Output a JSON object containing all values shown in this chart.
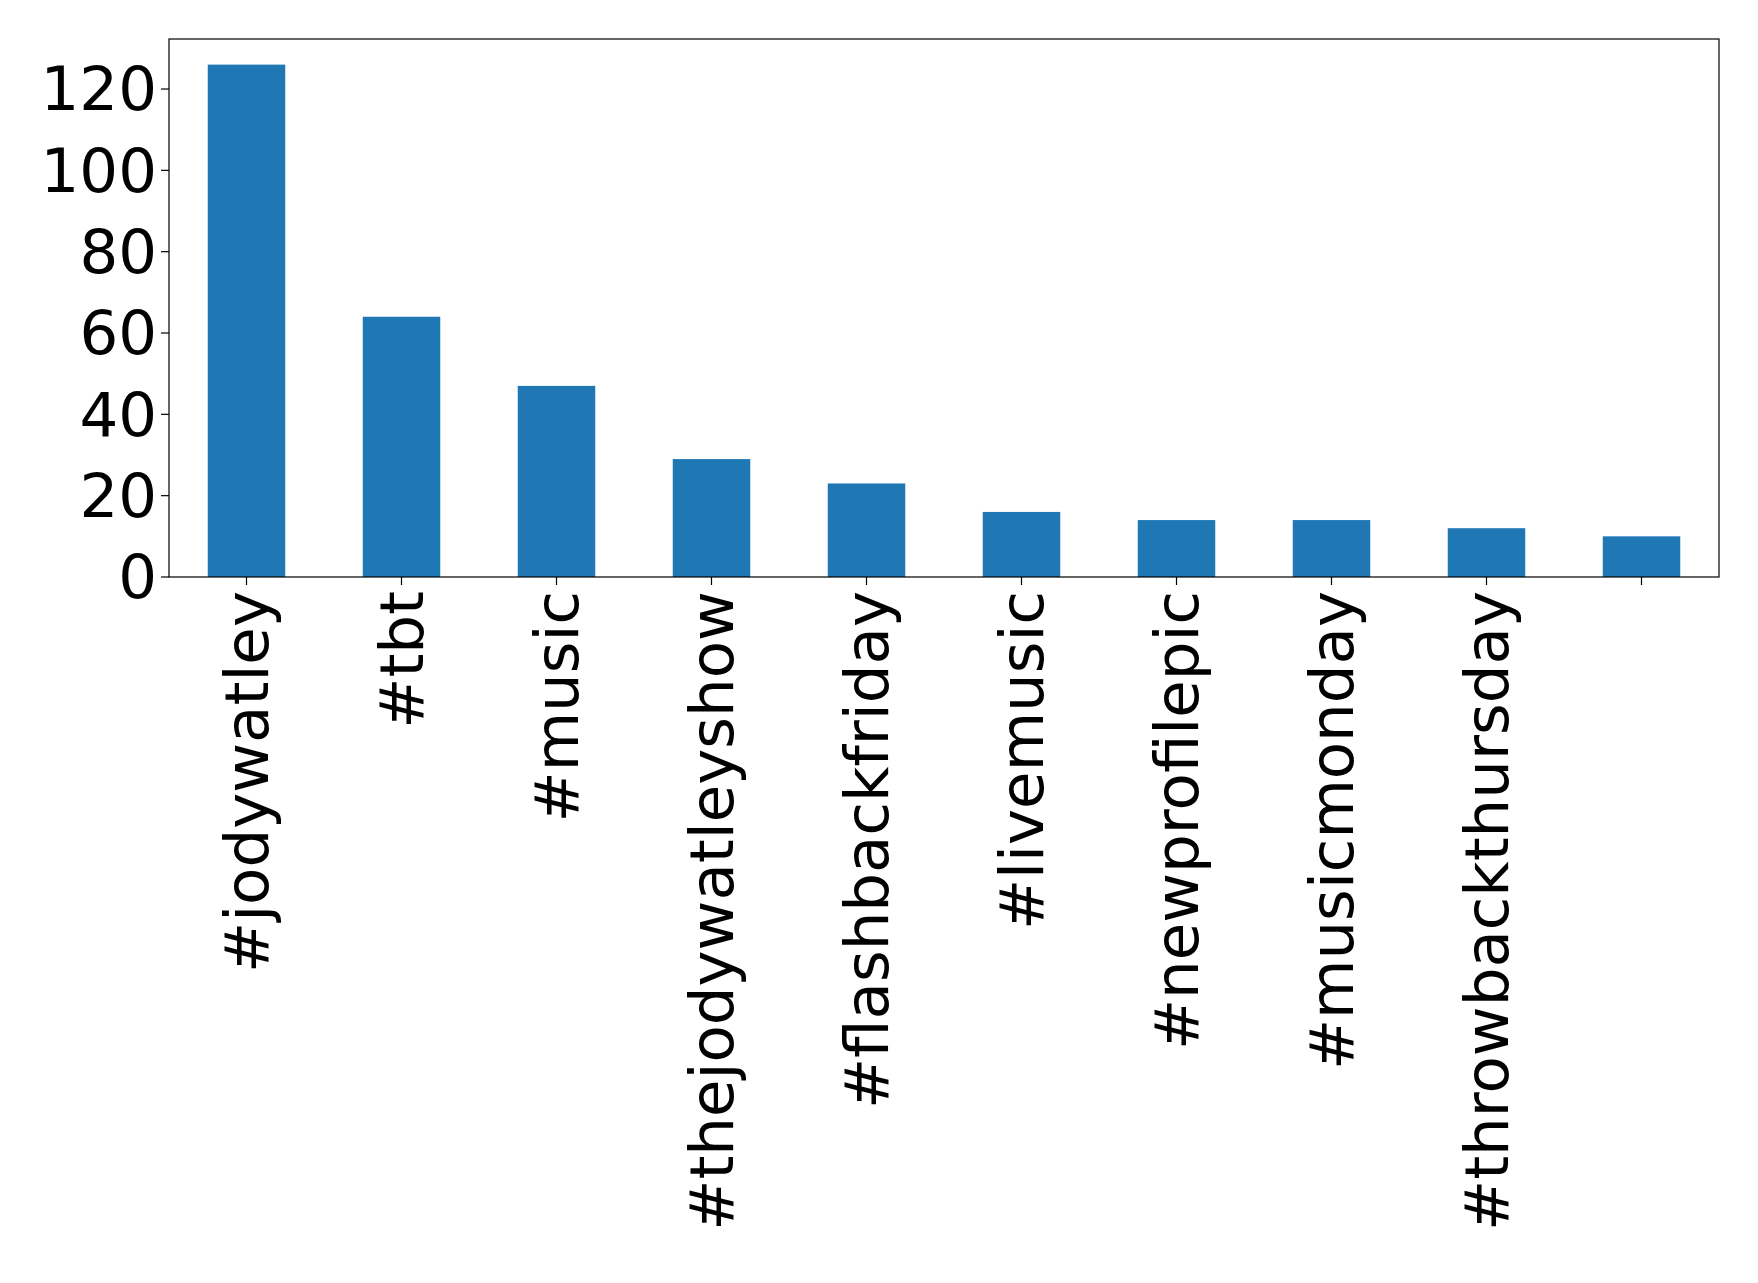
{
  "chart_data": {
    "type": "bar",
    "categories": [
      "#jodywatley",
      "#tbt",
      "#music",
      "#thejodywatleyshow",
      "#flashbackfriday",
      "#livemusic",
      "#newprofilepic",
      "#musicmonday",
      "#throwbackthursday",
      null
    ],
    "values": [
      126,
      64,
      47,
      29,
      23,
      16,
      14,
      14,
      12,
      10
    ],
    "color": "#1f77b4",
    "ylim": [
      0,
      132.3
    ],
    "yticks": [
      0,
      20,
      40,
      60,
      80,
      100,
      120
    ],
    "grid": false
  }
}
